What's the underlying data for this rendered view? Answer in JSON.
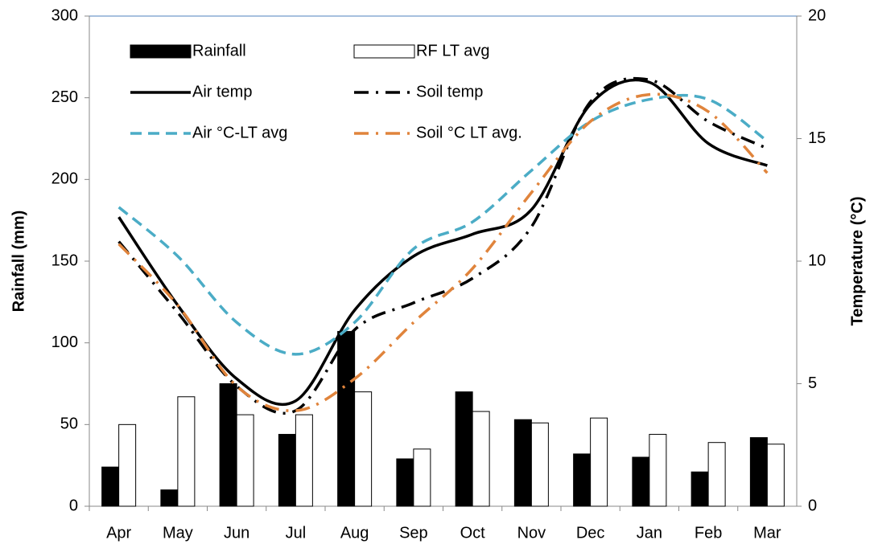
{
  "chart_data": {
    "type": "combo",
    "y_label": "Rainfall (mm)",
    "y2_label": "Temperature (°C)",
    "categories": [
      "Apr",
      "May",
      "Jun",
      "Jul",
      "Aug",
      "Sep",
      "Oct",
      "Nov",
      "Dec",
      "Jan",
      "Feb",
      "Mar"
    ],
    "ylim": [
      0,
      300
    ],
    "yticks": [
      0,
      50,
      100,
      150,
      200,
      250,
      300
    ],
    "y2lim": [
      0,
      20
    ],
    "y2ticks": [
      0,
      5,
      10,
      15,
      20
    ],
    "series": [
      {
        "name": "Rainfall",
        "type": "bar",
        "color": "#000000",
        "values": [
          24,
          10,
          75,
          44,
          107,
          29,
          70,
          53,
          32,
          30,
          21,
          42
        ]
      },
      {
        "name": "RF LT avg",
        "type": "bar",
        "color": "#ffffff",
        "values": [
          50,
          67,
          56,
          56,
          70,
          35,
          58,
          51,
          54,
          44,
          39,
          38
        ]
      },
      {
        "name": "Air temp",
        "type": "line",
        "axis": "y2",
        "color": "#000000",
        "dash": "solid",
        "values": [
          11.8,
          8.2,
          5.2,
          4.3,
          8.0,
          10.2,
          11.1,
          12.1,
          16.4,
          17.3,
          14.8,
          13.9
        ]
      },
      {
        "name": "Soil temp",
        "type": "line",
        "axis": "y2",
        "color": "#000000",
        "dash": "dashdot",
        "values": [
          10.8,
          7.9,
          4.9,
          3.9,
          7.2,
          8.3,
          9.3,
          11.4,
          16.5,
          17.4,
          15.7,
          14.6
        ]
      },
      {
        "name": "Air °C-LT avg",
        "type": "line",
        "axis": "y2",
        "color": "#4bacc6",
        "dash": "dash",
        "values": [
          12.2,
          10.2,
          7.5,
          6.2,
          7.5,
          10.5,
          11.6,
          13.7,
          15.7,
          16.6,
          16.6,
          14.9
        ]
      },
      {
        "name": "Soil °C LT avg.",
        "type": "line",
        "axis": "y2",
        "color": "#e0843c",
        "dash": "dashdot",
        "values": [
          10.7,
          8.2,
          4.9,
          3.9,
          5.2,
          7.5,
          9.7,
          12.8,
          15.7,
          16.8,
          16.1,
          13.6
        ]
      }
    ]
  }
}
